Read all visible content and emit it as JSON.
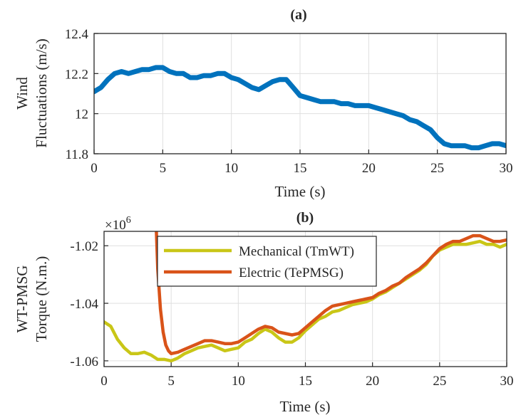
{
  "chart_data": [
    {
      "type": "line",
      "title": "(a)",
      "xlabel": "Time (s)",
      "ylabel": [
        "Wind",
        "Fluctuations (m/s)"
      ],
      "xlim": [
        0,
        30
      ],
      "ylim": [
        11.8,
        12.4
      ],
      "xticks": [
        "0",
        "5",
        "10",
        "15",
        "20",
        "25",
        "30"
      ],
      "yticks": [
        "11.8",
        "12",
        "12.2",
        "12.4"
      ],
      "grid": true,
      "series": [
        {
          "color": "#0072bd",
          "x": [
            0,
            0.5,
            1,
            1.5,
            2,
            2.5,
            3,
            3.5,
            4,
            4.5,
            5,
            5.5,
            6,
            6.5,
            7,
            7.5,
            8,
            8.5,
            9,
            9.5,
            10,
            10.5,
            11,
            11.5,
            12,
            12.5,
            13,
            13.5,
            14,
            14.5,
            15,
            15.5,
            16,
            16.5,
            17,
            17.5,
            18,
            18.5,
            19,
            19.5,
            20,
            20.5,
            21,
            21.5,
            22,
            22.5,
            23,
            23.5,
            24,
            24.5,
            25,
            25.5,
            26,
            26.5,
            27,
            27.5,
            28,
            28.5,
            29,
            29.5,
            30
          ],
          "y": [
            12.11,
            12.13,
            12.17,
            12.2,
            12.21,
            12.2,
            12.21,
            12.22,
            12.22,
            12.23,
            12.23,
            12.21,
            12.2,
            12.2,
            12.18,
            12.18,
            12.19,
            12.19,
            12.2,
            12.2,
            12.18,
            12.17,
            12.15,
            12.13,
            12.12,
            12.14,
            12.16,
            12.17,
            12.17,
            12.13,
            12.09,
            12.08,
            12.07,
            12.06,
            12.06,
            12.06,
            12.05,
            12.05,
            12.04,
            12.04,
            12.04,
            12.03,
            12.02,
            12.01,
            12.0,
            11.99,
            11.97,
            11.96,
            11.94,
            11.92,
            11.88,
            11.85,
            11.84,
            11.84,
            11.84,
            11.83,
            11.83,
            11.84,
            11.85,
            11.85,
            11.84
          ]
        }
      ]
    },
    {
      "type": "line",
      "title": "(b)",
      "xlabel": "Time (s)",
      "ylabel": [
        "WT-PMSG",
        "Torque (N.m.)"
      ],
      "exponent_label": "×10",
      "exponent_power": "6",
      "xlim": [
        0,
        30
      ],
      "ylim": [
        -1.062,
        -1.015
      ],
      "xticks": [
        "0",
        "5",
        "10",
        "15",
        "20",
        "25",
        "30"
      ],
      "yticks": [
        "-1.02",
        "-1.04",
        "-1.06"
      ],
      "ytick_values": [
        -1.02,
        -1.04,
        -1.06
      ],
      "grid": true,
      "legend_position": "top-center",
      "series": [
        {
          "name": "Mechanical (TmWT)",
          "color": "#c9c617",
          "x": [
            0,
            0.5,
            1,
            1.5,
            2,
            2.5,
            3,
            3.5,
            4,
            4.5,
            5,
            5.5,
            6,
            6.5,
            7,
            7.5,
            8,
            8.5,
            9,
            9.5,
            10,
            10.5,
            11,
            11.5,
            12,
            12.5,
            13,
            13.5,
            14,
            14.5,
            15,
            15.5,
            16,
            16.5,
            17,
            17.5,
            18,
            18.5,
            19,
            19.5,
            20,
            20.5,
            21,
            21.5,
            22,
            22.5,
            23,
            23.5,
            24,
            24.5,
            25,
            25.5,
            26,
            26.5,
            27,
            27.5,
            28,
            28.5,
            29,
            29.5,
            30
          ],
          "y": [
            -1.0465,
            -1.048,
            -1.0525,
            -1.0555,
            -1.0575,
            -1.0575,
            -1.057,
            -1.058,
            -1.0595,
            -1.0595,
            -1.06,
            -1.059,
            -1.0575,
            -1.0565,
            -1.0555,
            -1.055,
            -1.0545,
            -1.0555,
            -1.0565,
            -1.056,
            -1.0555,
            -1.0535,
            -1.0525,
            -1.0505,
            -1.049,
            -1.05,
            -1.052,
            -1.0535,
            -1.0535,
            -1.052,
            -1.0495,
            -1.0475,
            -1.0455,
            -1.0445,
            -1.043,
            -1.0425,
            -1.0415,
            -1.0405,
            -1.04,
            -1.0395,
            -1.0385,
            -1.037,
            -1.036,
            -1.0345,
            -1.033,
            -1.0315,
            -1.03,
            -1.0285,
            -1.0265,
            -1.0235,
            -1.0215,
            -1.0205,
            -1.0195,
            -1.0195,
            -1.0195,
            -1.019,
            -1.0185,
            -1.0195,
            -1.0195,
            -1.0205,
            -1.0195
          ]
        },
        {
          "name": "Electric (TePMSG)",
          "color": "#d95319",
          "x": [
            3.9,
            4.0,
            4.2,
            4.4,
            4.6,
            4.8,
            5.0,
            5.5,
            6,
            6.5,
            7,
            7.5,
            8,
            8.5,
            9,
            9.5,
            10,
            10.5,
            11,
            11.5,
            12,
            12.5,
            13,
            13.5,
            14,
            14.5,
            15,
            15.5,
            16,
            16.5,
            17,
            17.5,
            18,
            18.5,
            19,
            19.5,
            20,
            20.5,
            21,
            21.5,
            22,
            22.5,
            23,
            23.5,
            24,
            24.5,
            25,
            25.5,
            26,
            26.5,
            27,
            27.5,
            28,
            28.5,
            29,
            29.5,
            30
          ],
          "y": [
            -1.015,
            -1.028,
            -1.042,
            -1.05,
            -1.0545,
            -1.0565,
            -1.0575,
            -1.057,
            -1.056,
            -1.055,
            -1.054,
            -1.053,
            -1.053,
            -1.0535,
            -1.054,
            -1.054,
            -1.0535,
            -1.052,
            -1.0505,
            -1.049,
            -1.048,
            -1.0485,
            -1.05,
            -1.0505,
            -1.051,
            -1.0505,
            -1.0485,
            -1.0465,
            -1.0445,
            -1.0425,
            -1.041,
            -1.0405,
            -1.04,
            -1.0395,
            -1.039,
            -1.0385,
            -1.038,
            -1.0365,
            -1.0355,
            -1.034,
            -1.033,
            -1.031,
            -1.0295,
            -1.028,
            -1.026,
            -1.0235,
            -1.021,
            -1.0195,
            -1.0185,
            -1.0185,
            -1.0175,
            -1.0165,
            -1.0165,
            -1.0175,
            -1.0185,
            -1.0185,
            -1.018
          ]
        }
      ]
    }
  ]
}
